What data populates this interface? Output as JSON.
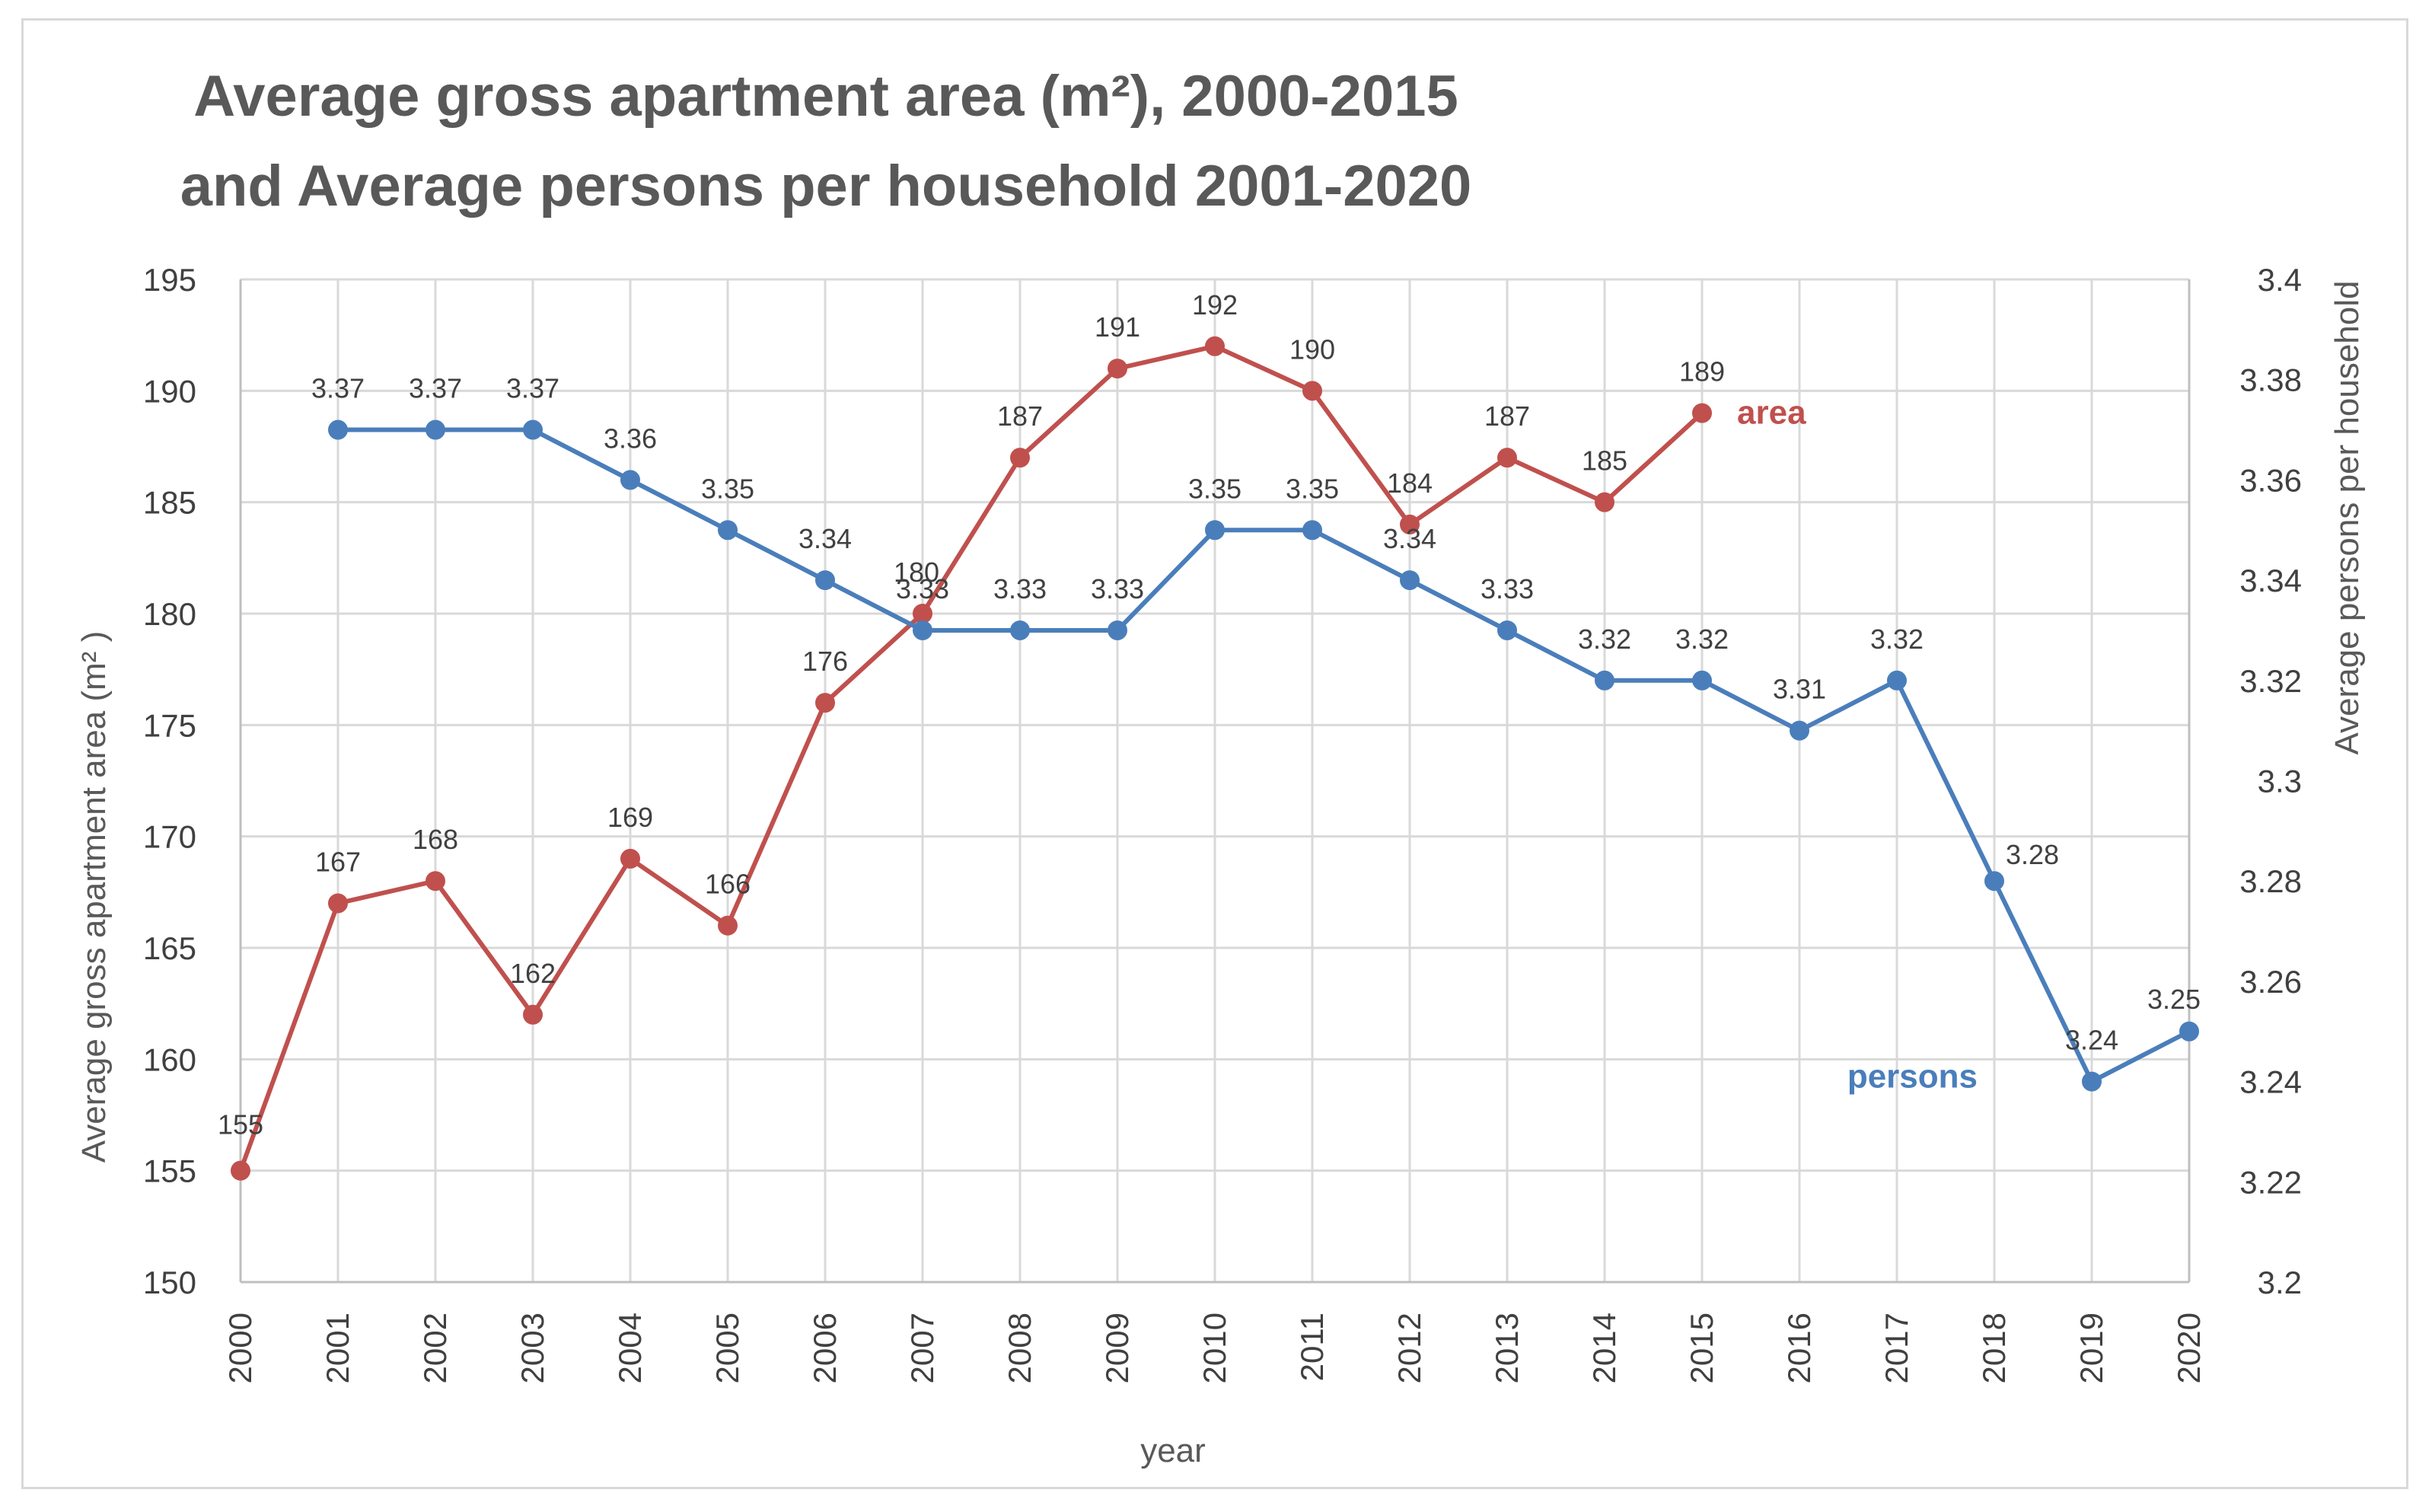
{
  "chart_data": {
    "type": "line",
    "title_line1": "Average gross apartment area (m²), 2000-2015",
    "title_line2": "and Average persons per household 2001-2020",
    "xlabel": "year",
    "ylabel_left": "Average gross apartment area (m² )",
    "ylabel_right": "Average persons per household",
    "ylim_left": [
      150,
      195
    ],
    "ylim_right": [
      3.2,
      3.4
    ],
    "left_ticks": [
      "150",
      "155",
      "160",
      "165",
      "170",
      "175",
      "180",
      "185",
      "190",
      "195"
    ],
    "right_ticks": [
      "3.2",
      "3.22",
      "3.24",
      "3.26",
      "3.28",
      "3.3",
      "3.32",
      "3.34",
      "3.36",
      "3.38",
      "3.4"
    ],
    "x": [
      "2000",
      "2001",
      "2002",
      "2003",
      "2004",
      "2005",
      "2006",
      "2007",
      "2008",
      "2009",
      "2010",
      "2011",
      "2012",
      "2013",
      "2014",
      "2015",
      "2016",
      "2017",
      "2018",
      "2019",
      "2020"
    ],
    "grid": true,
    "series": [
      {
        "name": "area",
        "axis": "left",
        "color": "#c0504d",
        "x": [
          "2000",
          "2001",
          "2002",
          "2003",
          "2004",
          "2005",
          "2006",
          "2007",
          "2008",
          "2009",
          "2010",
          "2011",
          "2012",
          "2013",
          "2014",
          "2015"
        ],
        "values": [
          155,
          167,
          168,
          162,
          169,
          166,
          176,
          180,
          187,
          191,
          192,
          190,
          184,
          187,
          185,
          189
        ],
        "labels": [
          "155",
          "167",
          "168",
          "162",
          "169",
          "166",
          "176",
          "180",
          "187",
          "191",
          "192",
          "190",
          "184",
          "187",
          "185",
          "189"
        ]
      },
      {
        "name": "persons",
        "axis": "right",
        "color": "#4a7ebb",
        "x": [
          "2001",
          "2002",
          "2003",
          "2004",
          "2005",
          "2006",
          "2007",
          "2008",
          "2009",
          "2010",
          "2011",
          "2012",
          "2013",
          "2014",
          "2015",
          "2016",
          "2017",
          "2018",
          "2019",
          "2020"
        ],
        "values": [
          3.37,
          3.37,
          3.37,
          3.36,
          3.35,
          3.34,
          3.33,
          3.33,
          3.33,
          3.35,
          3.35,
          3.34,
          3.33,
          3.32,
          3.32,
          3.31,
          3.32,
          3.28,
          3.24,
          3.25
        ],
        "labels": [
          "3.37",
          "3.37",
          "3.37",
          "3.36",
          "3.35",
          "3.34",
          "3.33",
          "3.33",
          "3.33",
          "3.35",
          "3.35",
          "3.34",
          "3.33",
          "3.32",
          "3.32",
          "3.31",
          "3.32",
          "3.28",
          "3.24",
          "3.25"
        ]
      }
    ]
  }
}
